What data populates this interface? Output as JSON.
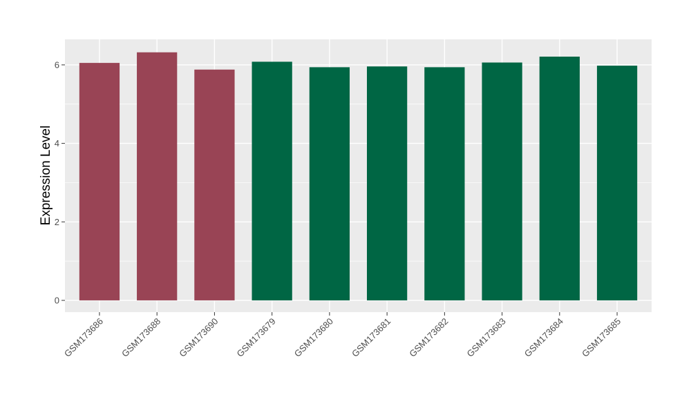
{
  "chart_data": {
    "type": "bar",
    "title": "",
    "xlabel": "",
    "ylabel": "Expression Level",
    "ylim": [
      -0.3,
      6.65
    ],
    "yticks": [
      0,
      2,
      4,
      6
    ],
    "grid": true,
    "categories": [
      "GSM173686",
      "GSM173688",
      "GSM173690",
      "GSM173679",
      "GSM173680",
      "GSM173681",
      "GSM173682",
      "GSM173683",
      "GSM173684",
      "GSM173685"
    ],
    "values": [
      6.05,
      6.32,
      5.88,
      6.08,
      5.94,
      5.96,
      5.94,
      6.06,
      6.21,
      5.98
    ],
    "colors": [
      "#994455",
      "#994455",
      "#994455",
      "#006644",
      "#006644",
      "#006644",
      "#006644",
      "#006644",
      "#006644",
      "#006644"
    ],
    "panel_color": "#EBEBEB",
    "grid_color": "#FFFFFF"
  }
}
